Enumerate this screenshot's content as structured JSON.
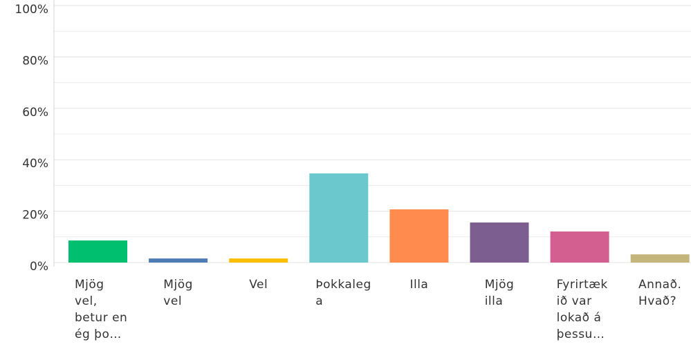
{
  "chart_data": {
    "type": "bar",
    "categories": [
      [
        "Mjög",
        "vel,",
        "betur en",
        "ég þo…"
      ],
      [
        "Mjög",
        "vel"
      ],
      [
        "Vel"
      ],
      [
        "Þokkaleg",
        "a"
      ],
      [
        "Illa"
      ],
      [
        "Mjög",
        "illa"
      ],
      [
        "Fyrirtæk",
        "ið var",
        "lokað á",
        "þessu…"
      ],
      [
        "Annað.",
        "Hvað?"
      ]
    ],
    "values": [
      8.6,
      1.6,
      1.6,
      34.7,
      20.7,
      15.6,
      12.1,
      3.2
    ],
    "colors": [
      "#00bf6f",
      "#507cb6",
      "#f9be00",
      "#6bc8cd",
      "#ff8b4f",
      "#7d5e90",
      "#d25f90",
      "#c4b57d"
    ],
    "ylim": [
      0,
      100
    ],
    "yticks": [
      {
        "value": 0,
        "label": "0%"
      },
      {
        "value": 20,
        "label": "20%"
      },
      {
        "value": 40,
        "label": "40%"
      },
      {
        "value": 60,
        "label": "60%"
      },
      {
        "value": 80,
        "label": "80%"
      },
      {
        "value": 100,
        "label": "100%"
      }
    ],
    "minor_yticks": [
      10,
      30,
      50,
      70,
      90
    ],
    "grid": true
  }
}
